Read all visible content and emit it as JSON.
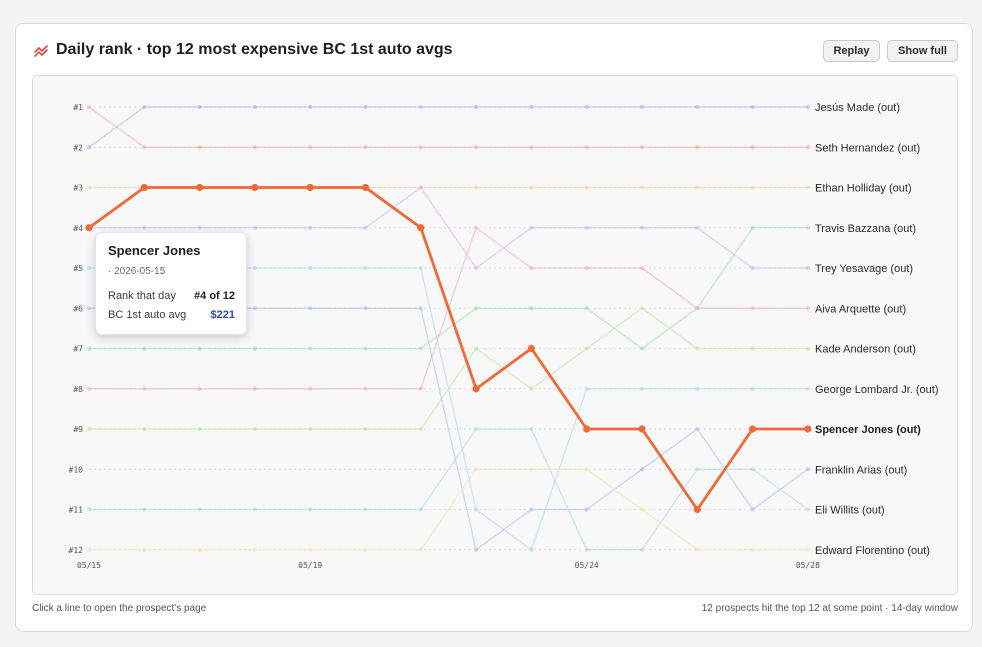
{
  "header": {
    "title": "Daily rank · top 12 most expensive BC 1st auto avgs",
    "icon": "trend-line-icon",
    "replay_label": "Replay",
    "show_full_label": "Show full"
  },
  "footer": {
    "left": "Click a line to open the prospect's page",
    "right": "12 prospects hit the top 12 at some point · 14-day window"
  },
  "tooltip": {
    "name": "Spencer Jones",
    "date": "· 2026-05-15",
    "rank_label": "Rank that day",
    "rank_value": "#4 of 12",
    "avg_label": "BC 1st auto avg",
    "avg_value": "$221"
  },
  "chart_data": {
    "type": "line",
    "title": "Daily rank · top 12 most expensive BC 1st auto avgs",
    "x": [
      "05/15",
      "05/16",
      "05/17",
      "05/18",
      "05/19",
      "05/20",
      "05/21",
      "05/22",
      "05/23",
      "05/24",
      "05/25",
      "05/26",
      "05/27",
      "05/28"
    ],
    "x_tick_labels": [
      {
        "index": 0,
        "label": "05/15"
      },
      {
        "index": 4,
        "label": "05/19"
      },
      {
        "index": 9,
        "label": "05/24"
      },
      {
        "index": 13,
        "label": "05/28"
      }
    ],
    "y_tick_labels": [
      "#1",
      "#2",
      "#3",
      "#4",
      "#5",
      "#6",
      "#7",
      "#8",
      "#9",
      "#10",
      "#11",
      "#12"
    ],
    "ylim": [
      1,
      12
    ],
    "y_inverted": true,
    "grid": true,
    "highlighted_series": "Spencer Jones (out)",
    "series": [
      {
        "name": "Jesús Made (out)",
        "color": "#a7b4ea",
        "values": [
          2,
          1,
          1,
          1,
          1,
          1,
          1,
          1,
          1,
          1,
          1,
          1,
          1,
          1
        ]
      },
      {
        "name": "Seth Hernandez (out)",
        "color": "#f3a99c",
        "values": [
          1,
          2,
          2,
          2,
          2,
          2,
          2,
          2,
          2,
          2,
          2,
          2,
          2,
          2
        ]
      },
      {
        "name": "Ethan Holliday (out)",
        "color": "#f6d0a0",
        "values": [
          3,
          3,
          3,
          3,
          3,
          3,
          3,
          3,
          3,
          3,
          3,
          3,
          3,
          3
        ]
      },
      {
        "name": "Travis Bazzana (out)",
        "color": "#9fdcab",
        "values": [
          7,
          7,
          7,
          7,
          7,
          7,
          7,
          6,
          6,
          6,
          7,
          6,
          4,
          4
        ]
      },
      {
        "name": "Trey Yesavage (out)",
        "color": "#d2b3ef",
        "values": [
          4,
          4,
          4,
          4,
          4,
          4,
          3,
          5,
          4,
          4,
          4,
          4,
          5,
          5
        ]
      },
      {
        "name": "Aiva Arquette (out)",
        "color": "#f2a9c6",
        "values": [
          8,
          8,
          8,
          8,
          8,
          8,
          8,
          4,
          5,
          5,
          5,
          6,
          6,
          6
        ]
      },
      {
        "name": "Kade Anderson (out)",
        "color": "#bde59e",
        "values": [
          9,
          9,
          9,
          9,
          9,
          9,
          9,
          7,
          8,
          7,
          6,
          7,
          7,
          7
        ]
      },
      {
        "name": "George Lombard Jr. (out)",
        "color": "#a7d9ee",
        "values": [
          5,
          5,
          5,
          5,
          5,
          5,
          5,
          11,
          12,
          8,
          8,
          8,
          8,
          8
        ]
      },
      {
        "name": "Spencer Jones (out)",
        "color": "#ee6a36",
        "values": [
          4,
          3,
          3,
          3,
          3,
          3,
          4,
          8,
          7,
          9,
          9,
          11,
          9,
          9
        ]
      },
      {
        "name": "Franklin Arias (out)",
        "color": "#a9bdf0",
        "values": [
          6,
          6,
          6,
          6,
          6,
          6,
          6,
          12,
          11,
          11,
          10,
          9,
          11,
          10
        ]
      },
      {
        "name": "Eli Willits (out)",
        "color": "#a9dbe0",
        "values": [
          11,
          11,
          11,
          11,
          11,
          11,
          11,
          9,
          9,
          12,
          12,
          10,
          10,
          11
        ]
      },
      {
        "name": "Edward Florentino (out)",
        "color": "#f7e2a8",
        "values": [
          12,
          12,
          12,
          12,
          12,
          12,
          12,
          10,
          10,
          10,
          11,
          12,
          12,
          12
        ]
      }
    ]
  }
}
